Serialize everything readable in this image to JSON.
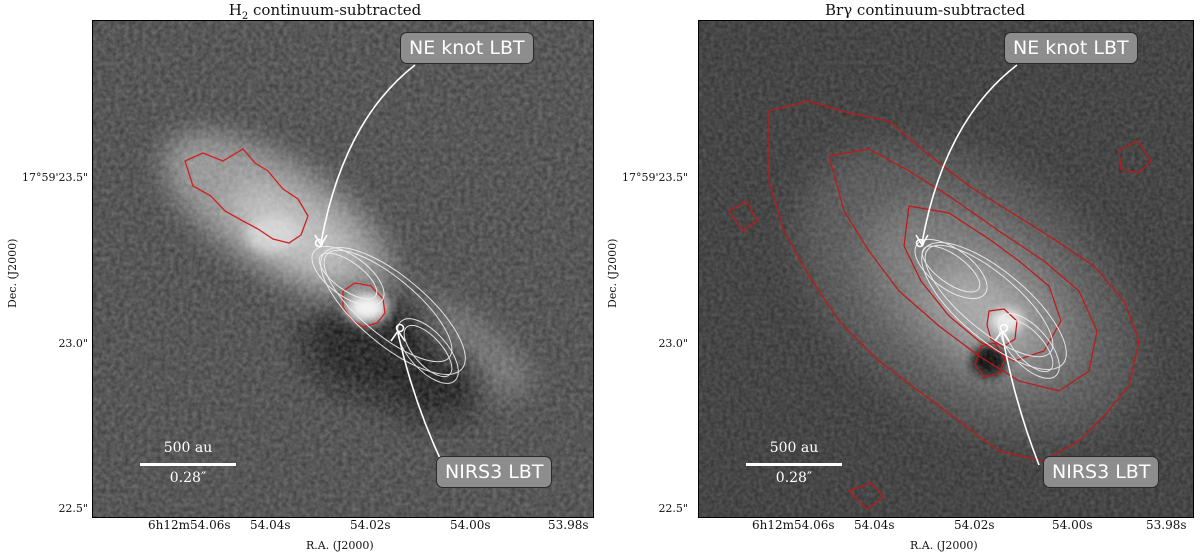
{
  "panels": [
    {
      "title_main": "H",
      "title_sub": "2",
      "title_rest": " continuum-subtracted",
      "ylabel": "Dec. (J2000)",
      "xlabel": "R.A. (J2000)",
      "yticks": [
        "17°59'23.5\"",
        "23.0\"",
        "22.5\""
      ],
      "xticks": [
        "6h12m54.06s",
        "54.04s",
        "54.02s",
        "54.00s",
        "53.98s"
      ],
      "label_top": "NE knot LBT",
      "label_bottom": "NIRS3 LBT",
      "scale_au": "500 au",
      "scale_arcsec": "0.28″"
    },
    {
      "title_main": "Brγ continuum-subtracted",
      "title_sub": "",
      "title_rest": "",
      "ylabel": "Dec. (J2000)",
      "xlabel": "R.A. (J2000)",
      "yticks": [
        "17°59'23.5\"",
        "23.0\"",
        "22.5\""
      ],
      "xticks": [
        "6h12m54.06s",
        "54.04s",
        "54.02s",
        "54.00s",
        "53.98s"
      ],
      "label_top": "NE knot LBT",
      "label_bottom": "NIRS3 LBT",
      "scale_au": "500 au",
      "scale_arcsec": "0.28″"
    }
  ],
  "colors": {
    "contour_red": "#d22020",
    "contour_white": "#f0f0f0",
    "label_fill": "#8d8d8d"
  }
}
